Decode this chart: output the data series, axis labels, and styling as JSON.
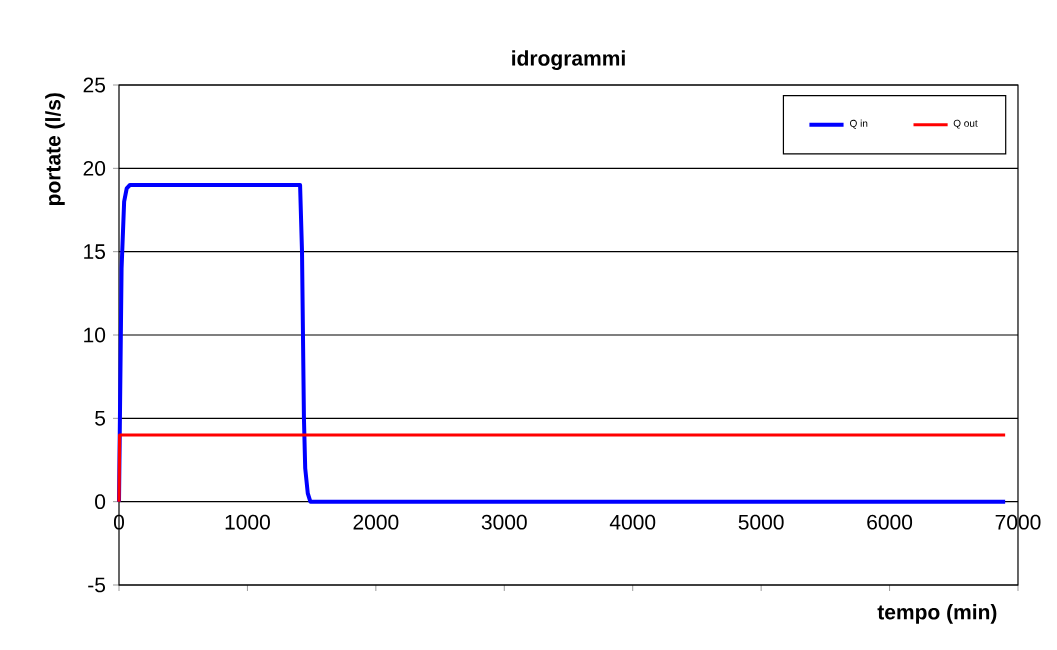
{
  "chart_data": {
    "type": "line",
    "title": "idrogrammi",
    "xlabel": "tempo (min)",
    "ylabel": "portate (l/s)",
    "xlim": [
      0,
      7000
    ],
    "ylim": [
      -5,
      25
    ],
    "xticks": [
      0,
      1000,
      2000,
      3000,
      4000,
      5000,
      6000,
      7000
    ],
    "yticks": [
      -5,
      0,
      5,
      10,
      15,
      20,
      25
    ],
    "grid": "y",
    "legend": "top right",
    "marker": "none",
    "line_style": "solid",
    "series": [
      {
        "name": "Q in",
        "color": "#0000ff",
        "x": [
          0,
          20,
          40,
          60,
          85,
          1410,
          1425,
          1440,
          1450,
          1470,
          1490,
          6900
        ],
        "values": [
          0,
          14,
          18,
          18.8,
          19,
          19,
          15,
          5,
          2,
          0.5,
          0,
          0
        ]
      },
      {
        "name": "Q out",
        "color": "#ff0000",
        "x": [
          0,
          5,
          6900
        ],
        "values": [
          0,
          4,
          4
        ]
      }
    ]
  }
}
